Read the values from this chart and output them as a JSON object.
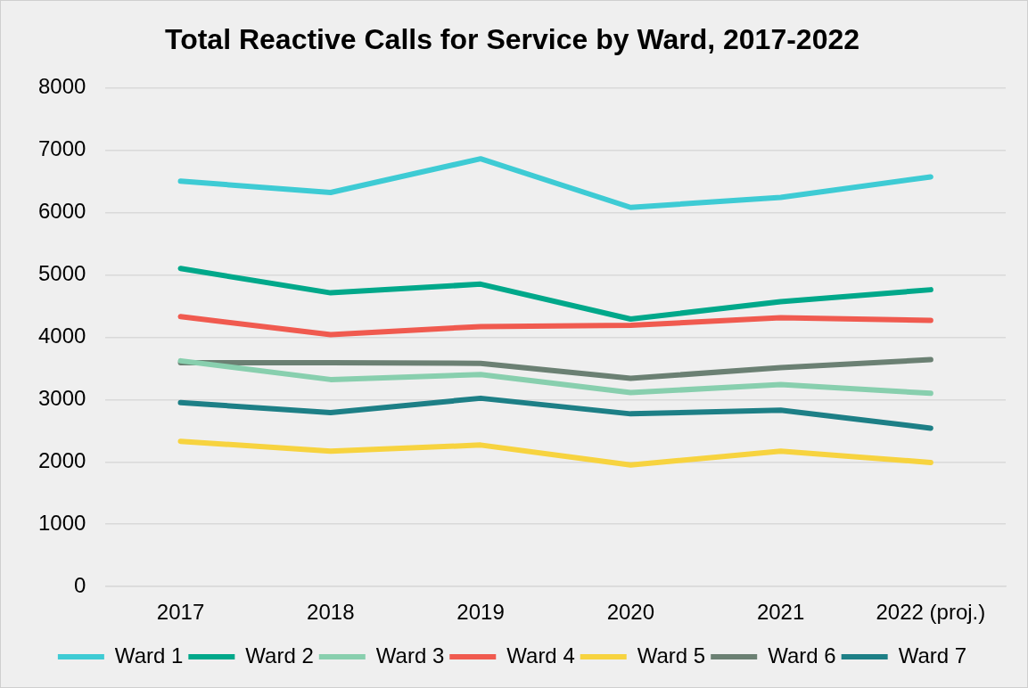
{
  "chart_data": {
    "type": "line",
    "title": "Total Reactive Calls for Service by Ward, 2017-2022",
    "categories": [
      "2017",
      "2018",
      "2019",
      "2020",
      "2021",
      "2022 (proj.)"
    ],
    "series": [
      {
        "name": "Ward 1",
        "color": "#3ecbd4",
        "values": [
          6500,
          6320,
          6860,
          6080,
          6240,
          6570
        ]
      },
      {
        "name": "Ward 2",
        "color": "#00a88a",
        "values": [
          5100,
          4710,
          4850,
          4290,
          4570,
          4760
        ]
      },
      {
        "name": "Ward 3",
        "color": "#88cfae",
        "values": [
          3620,
          3320,
          3400,
          3110,
          3240,
          3100
        ]
      },
      {
        "name": "Ward 4",
        "color": "#f05a4f",
        "values": [
          4330,
          4040,
          4170,
          4190,
          4310,
          4270
        ]
      },
      {
        "name": "Ward 5",
        "color": "#f7d33f",
        "values": [
          2330,
          2170,
          2270,
          1950,
          2170,
          1990
        ]
      },
      {
        "name": "Ward 6",
        "color": "#6b8073",
        "values": [
          3590,
          3590,
          3580,
          3340,
          3510,
          3640
        ]
      },
      {
        "name": "Ward 7",
        "color": "#1d7f86",
        "values": [
          2950,
          2790,
          3020,
          2770,
          2830,
          2540
        ]
      }
    ],
    "ylim": [
      0,
      8000
    ],
    "yticks": [
      0,
      1000,
      2000,
      3000,
      4000,
      5000,
      6000,
      7000,
      8000
    ],
    "grid": "y",
    "legend": "bottom",
    "marker": "none",
    "line_style": "solid"
  }
}
